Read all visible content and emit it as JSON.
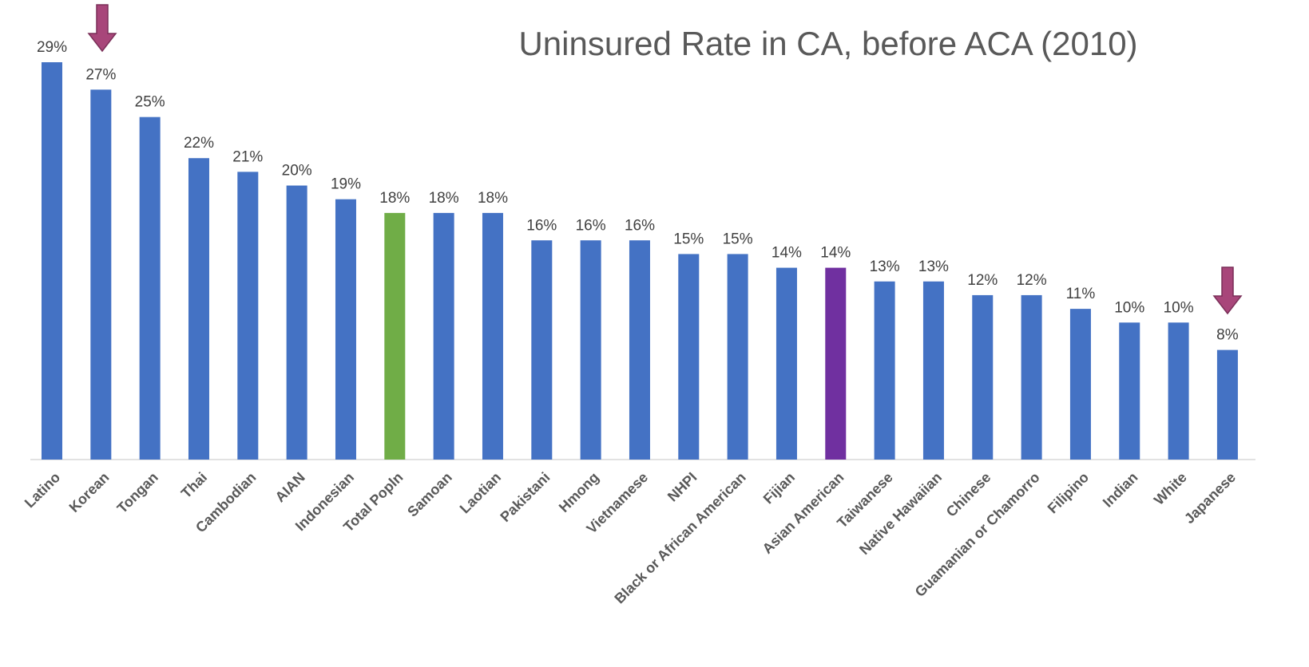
{
  "chart_data": {
    "type": "bar",
    "title": "Uninsured Rate in CA, before ACA (2010)",
    "categories": [
      "Latino",
      "Korean",
      "Tongan",
      "Thai",
      "Cambodian",
      "AIAN",
      "Indonesian",
      "Total Popln",
      "Samoan",
      "Laotian",
      "Pakistani",
      "Hmong",
      "Vietnamese",
      "NHPI",
      "Black or African American",
      "Fijian",
      "Asian American",
      "Taiwanese",
      "Native Hawaiian",
      "Chinese",
      "Guamanian or Chamorro",
      "Filipino",
      "Indian",
      "White",
      "Japanese"
    ],
    "values": [
      29,
      27,
      25,
      22,
      21,
      20,
      19,
      18,
      18,
      18,
      16,
      16,
      16,
      15,
      15,
      14,
      14,
      13,
      13,
      12,
      12,
      11,
      10,
      10,
      8
    ],
    "value_labels": [
      "29%",
      "27%",
      "25%",
      "22%",
      "21%",
      "20%",
      "19%",
      "18%",
      "18%",
      "18%",
      "16%",
      "16%",
      "16%",
      "15%",
      "15%",
      "14%",
      "14%",
      "13%",
      "13%",
      "12%",
      "12%",
      "11%",
      "10%",
      "10%",
      "8%"
    ],
    "colors": [
      "#4472c4",
      "#4472c4",
      "#4472c4",
      "#4472c4",
      "#4472c4",
      "#4472c4",
      "#4472c4",
      "#70ad47",
      "#4472c4",
      "#4472c4",
      "#4472c4",
      "#4472c4",
      "#4472c4",
      "#4472c4",
      "#4472c4",
      "#4472c4",
      "#7030a0",
      "#4472c4",
      "#4472c4",
      "#4472c4",
      "#4472c4",
      "#4472c4",
      "#4472c4",
      "#4472c4",
      "#4472c4"
    ]
  }
}
